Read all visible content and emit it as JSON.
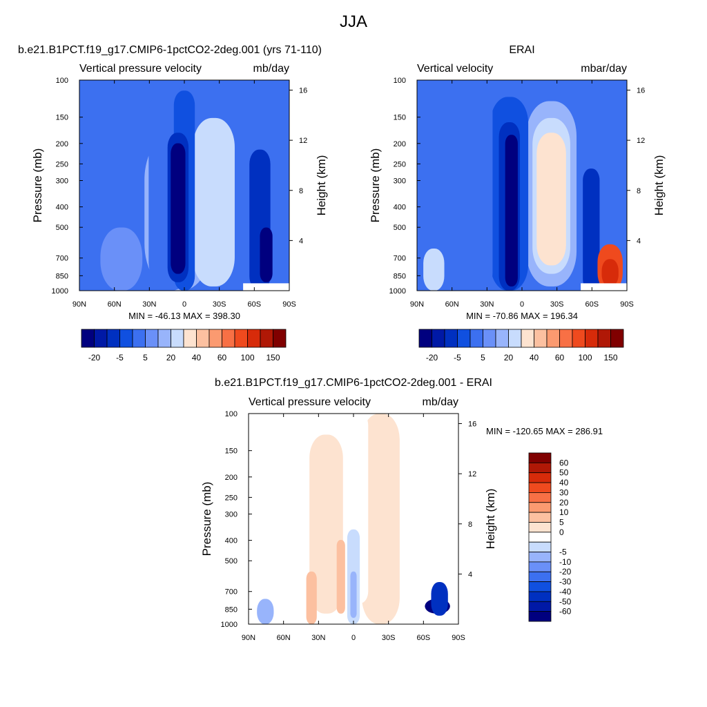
{
  "page": {
    "title": "JJA"
  },
  "chart_data": [
    {
      "type": "heatmap",
      "title": "b.e21.B1PCT.f19_g17.CMIP6-1pctCO2-2deg.001 (yrs 71-110)",
      "left_label": "Vertical pressure velocity",
      "units": "mb/day",
      "ylabel": "Pressure (mb)",
      "y2label": "Height (km)",
      "x_ticks": [
        "90N",
        "60N",
        "30N",
        "0",
        "30S",
        "60S",
        "90S"
      ],
      "y_ticks": [
        "100",
        "150",
        "200",
        "250",
        "300",
        "400",
        "500",
        "700",
        "850",
        "1000"
      ],
      "y2_ticks": [
        "4",
        "8",
        "12",
        "16"
      ],
      "xlim": [
        90,
        -90
      ],
      "ylim": [
        1000,
        100
      ],
      "ylog": true,
      "stats": "MIN = -46.13  MAX = 398.30",
      "min": -46.13,
      "max": 398.3,
      "colorbar": {
        "orientation": "horizontal",
        "tick_labels": [
          "-20",
          "-5",
          "5",
          "20",
          "40",
          "60",
          "100",
          "150"
        ],
        "colors": [
          "#00007f",
          "#0019a6",
          "#0030c0",
          "#1050e0",
          "#3c70f0",
          "#6a90f8",
          "#98b4fb",
          "#c8dcfd",
          "#fde3d0",
          "#fcc0a0",
          "#fb9a70",
          "#f87045",
          "#ef4a1e",
          "#d72b0a",
          "#b01806",
          "#800000"
        ]
      }
    },
    {
      "type": "heatmap",
      "title": "ERAI",
      "left_label": "Vertical velocity",
      "units": "mbar/day",
      "ylabel": "Pressure (mb)",
      "y2label": "Height (km)",
      "x_ticks": [
        "90N",
        "60N",
        "30N",
        "0",
        "30S",
        "60S",
        "90S"
      ],
      "y_ticks": [
        "100",
        "150",
        "200",
        "250",
        "300",
        "400",
        "500",
        "700",
        "850",
        "1000"
      ],
      "y2_ticks": [
        "4",
        "8",
        "12",
        "16"
      ],
      "xlim": [
        90,
        -90
      ],
      "ylim": [
        1000,
        100
      ],
      "ylog": true,
      "stats": "MIN = -70.86  MAX = 196.34",
      "min": -70.86,
      "max": 196.34,
      "colorbar": {
        "orientation": "horizontal",
        "tick_labels": [
          "-20",
          "-5",
          "5",
          "20",
          "40",
          "60",
          "100",
          "150"
        ],
        "colors": [
          "#00007f",
          "#0019a6",
          "#0030c0",
          "#1050e0",
          "#3c70f0",
          "#6a90f8",
          "#98b4fb",
          "#c8dcfd",
          "#fde3d0",
          "#fcc0a0",
          "#fb9a70",
          "#f87045",
          "#ef4a1e",
          "#d72b0a",
          "#b01806",
          "#800000"
        ]
      }
    },
    {
      "type": "heatmap",
      "title": "b.e21.B1PCT.f19_g17.CMIP6-1pctCO2-2deg.001 - ERAI",
      "left_label": "Vertical pressure velocity",
      "units": "mb/day",
      "ylabel": "Pressure (mb)",
      "y2label": "Height (km)",
      "x_ticks": [
        "90N",
        "60N",
        "30N",
        "0",
        "30S",
        "60S",
        "90S"
      ],
      "y_ticks": [
        "100",
        "150",
        "200",
        "250",
        "300",
        "400",
        "500",
        "700",
        "850",
        "1000"
      ],
      "y2_ticks": [
        "4",
        "8",
        "12",
        "16"
      ],
      "xlim": [
        90,
        -90
      ],
      "ylim": [
        1000,
        100
      ],
      "ylog": true,
      "stats": "MIN = -120.65  MAX = 286.91",
      "min": -120.65,
      "max": 286.91,
      "colorbar": {
        "orientation": "vertical",
        "tick_labels": [
          "60",
          "50",
          "40",
          "30",
          "20",
          "10",
          "5",
          "0",
          "-5",
          "-10",
          "-20",
          "-30",
          "-40",
          "-50",
          "-60"
        ],
        "colors": [
          "#800000",
          "#b01806",
          "#d72b0a",
          "#ef4a1e",
          "#f87045",
          "#fb9a70",
          "#fcc0a0",
          "#fde3d0",
          "#ffffff",
          "#c8dcfd",
          "#98b4fb",
          "#6a90f8",
          "#3c70f0",
          "#1050e0",
          "#0030c0",
          "#0019a6",
          "#00007f"
        ]
      }
    }
  ]
}
